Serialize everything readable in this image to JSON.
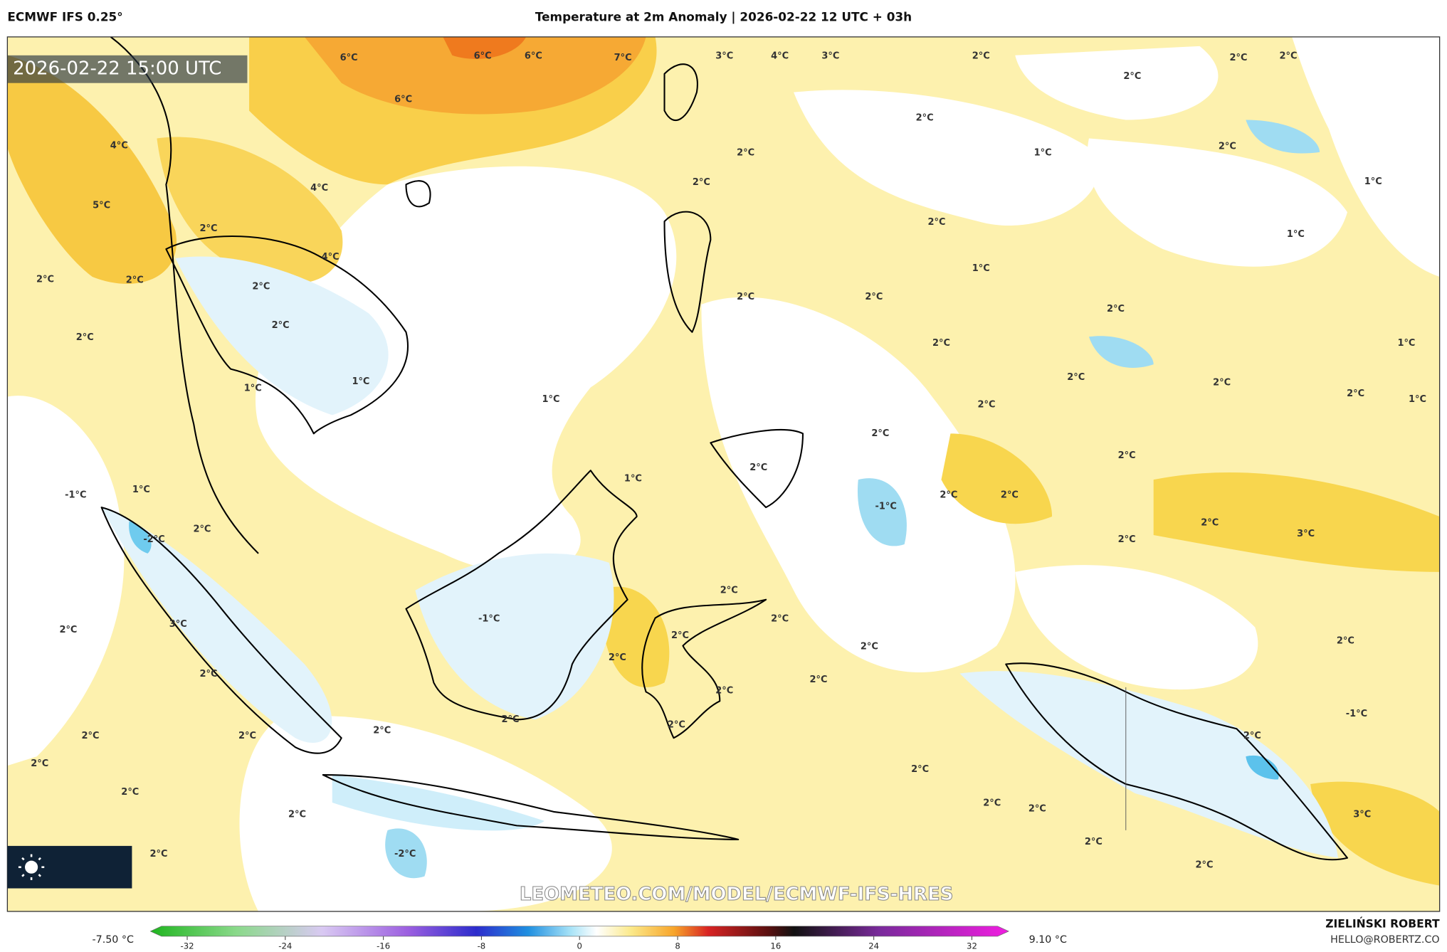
{
  "header": {
    "left": "ECMWF IFS 0.25°",
    "center": "Temperature at 2m Anomaly | 2026-02-22 12 UTC + 03h"
  },
  "map": {
    "timestamp": "2026-02-22 15:00 UTC",
    "watermark": "LEOMETEO.COM/MODEL/ECMWF-IFS-HRES",
    "contour_labels": [
      "6°C",
      "6°C",
      "6°C",
      "7°C",
      "3°C",
      "4°C",
      "3°C",
      "2°C",
      "2°C",
      "2°C",
      "2°C",
      "6°C",
      "2°C",
      "4°C",
      "2°C",
      "1°C",
      "2°C",
      "1°C",
      "2°C",
      "5°C",
      "4°C",
      "2°C",
      "1°C",
      "2°C",
      "4°C",
      "1°C",
      "2°C",
      "2°C",
      "2°C",
      "2°C",
      "2°C",
      "2°C",
      "2°C",
      "2°C",
      "2°C",
      "1°C",
      "2°C",
      "2°C",
      "1°C",
      "1°C",
      "1°C",
      "2°C",
      "2°C",
      "1°C",
      "2°C",
      "2°C",
      "1°C",
      "1°C",
      "-1°C",
      "2°C",
      "-1°C",
      "2°C",
      "2°C",
      "2°C",
      "-2°C",
      "2°C",
      "3°C",
      "2°C",
      "2°C",
      "2°C",
      "-1°C",
      "3°C",
      "2°C",
      "2°C",
      "2°C",
      "2°C",
      "2°C",
      "2°C",
      "2°C",
      "2°C",
      "-1°C",
      "2°C",
      "2°C",
      "2°C",
      "2°C",
      "2°C",
      "2°C",
      "2°C",
      "2°C",
      "2°C",
      "2°C",
      "2°C",
      "3°C",
      "2°C",
      "2°C",
      "2°C",
      "-2°C",
      "2°C"
    ]
  },
  "colorbar": {
    "min_label": "-7.50 °C",
    "max_label": "9.10 °C",
    "range": [
      -35,
      35
    ],
    "ticks": [
      -32,
      -24,
      -16,
      -8,
      0,
      8,
      16,
      24,
      32
    ]
  },
  "credit": {
    "name": "ZIELIŃSKI ROBERT",
    "email": "HELLO@ROBERTZ.CO"
  }
}
